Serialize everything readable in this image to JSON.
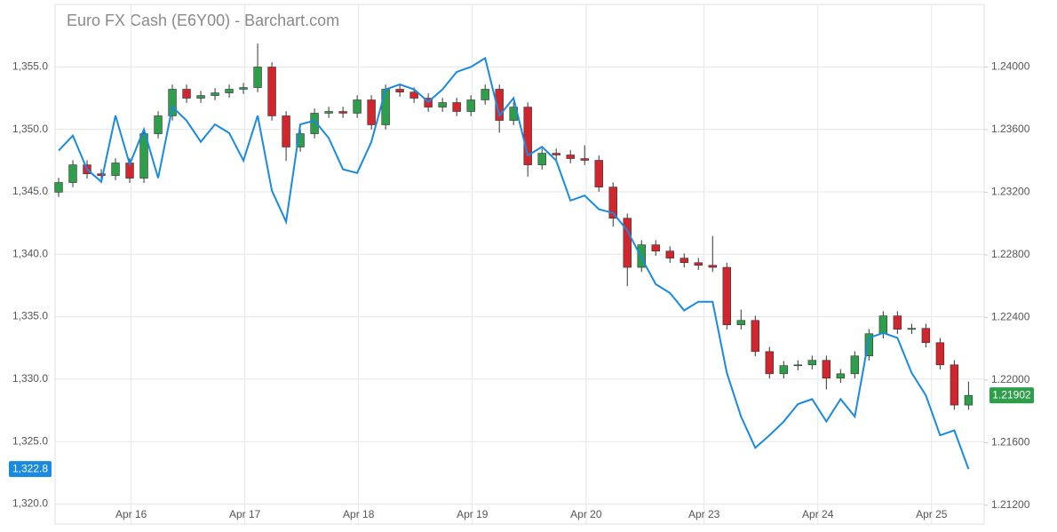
{
  "chart_data": {
    "type": "candlestick",
    "title": "Euro FX Cash (E6Y00) - Barchart.com",
    "x": [
      0,
      1,
      2,
      3,
      4,
      5,
      6,
      7,
      8,
      9,
      10,
      11,
      12,
      13,
      14,
      15,
      16,
      17,
      18,
      19,
      20,
      21,
      22,
      23,
      24,
      25,
      26,
      27,
      28,
      29,
      30,
      31,
      32,
      33,
      34,
      35,
      36,
      37,
      38,
      39,
      40,
      41,
      42,
      43,
      44,
      45,
      46,
      47,
      48,
      49,
      50,
      51,
      52,
      53,
      54,
      55,
      56,
      57,
      58,
      59,
      60,
      61,
      62,
      63,
      64
    ],
    "xlim": [
      -0.25,
      65.1
    ],
    "xticks": [
      {
        "value": 5.1,
        "label": "Apr 16"
      },
      {
        "value": 13.1,
        "label": "Apr 17"
      },
      {
        "value": 21.1,
        "label": "Apr 18"
      },
      {
        "value": 29.1,
        "label": "Apr 19"
      },
      {
        "value": 37.1,
        "label": "Apr 20"
      },
      {
        "value": 45.4,
        "label": "Apr 23"
      },
      {
        "value": 53.4,
        "label": "Apr 24"
      },
      {
        "value": 61.4,
        "label": "Apr 25"
      }
    ],
    "ylim": [
      1318.4,
      1360.0
    ],
    "yticks": [
      {
        "value": 1320,
        "label": "1,320.0"
      },
      {
        "value": 1325,
        "label": "1,325.0"
      },
      {
        "value": 1330,
        "label": "1,330.0"
      },
      {
        "value": 1335,
        "label": "1,335.0"
      },
      {
        "value": 1340,
        "label": "1,340.0"
      },
      {
        "value": 1345,
        "label": "1,345.0"
      },
      {
        "value": 1350,
        "label": "1,350.0"
      },
      {
        "value": 1355,
        "label": "1,355.0"
      }
    ],
    "y2lim": [
      1.2108,
      1.244
    ],
    "y2ticks": [
      {
        "value": 1.212,
        "label": "1.21200"
      },
      {
        "value": 1.216,
        "label": "1.21600"
      },
      {
        "value": 1.22,
        "label": "1.22000"
      },
      {
        "value": 1.224,
        "label": "1.22400"
      },
      {
        "value": 1.228,
        "label": "1.22800"
      },
      {
        "value": 1.232,
        "label": "1.23200"
      },
      {
        "value": 1.236,
        "label": "1.23600"
      },
      {
        "value": 1.24,
        "label": "1.24000"
      }
    ],
    "grid": true,
    "candles": {
      "axis": "y2",
      "up_color": "#2e9e4a",
      "down_color": "#d0262d",
      "open": [
        1.232,
        1.23262,
        1.23375,
        1.23318,
        1.23307,
        1.23387,
        1.2329,
        1.23574,
        1.23688,
        1.23858,
        1.23801,
        1.23818,
        1.23835,
        1.23858,
        1.23869,
        1.24,
        1.23688,
        1.23489,
        1.23574,
        1.23705,
        1.23716,
        1.23705,
        1.2379,
        1.23631,
        1.23858,
        1.2384,
        1.23801,
        1.23744,
        1.23773,
        1.23716,
        1.2379,
        1.23858,
        1.23659,
        1.23744,
        1.23375,
        1.23449,
        1.23438,
        1.23415,
        1.23404,
        1.23233,
        1.23034,
        1.2272,
        1.22864,
        1.22824,
        1.22779,
        1.2275,
        1.22733,
        1.2272,
        1.22353,
        1.22381,
        1.22182,
        1.2204,
        1.22092,
        1.22097,
        1.22126,
        1.22012,
        1.2204,
        1.22154,
        1.22296,
        1.2241,
        1.22324,
        1.2233,
        1.22239,
        1.22097,
        1.2184
      ],
      "high": [
        1.23292,
        1.23405,
        1.23405,
        1.23348,
        1.23417,
        1.23417,
        1.23604,
        1.23718,
        1.23888,
        1.23888,
        1.23848,
        1.23865,
        1.23888,
        1.23899,
        1.2415,
        1.2403,
        1.23718,
        1.23604,
        1.23735,
        1.23746,
        1.23746,
        1.2382,
        1.2382,
        1.23888,
        1.23888,
        1.2387,
        1.23831,
        1.23803,
        1.23803,
        1.2382,
        1.23888,
        1.23888,
        1.23774,
        1.23774,
        1.23479,
        1.23479,
        1.23468,
        1.235,
        1.23434,
        1.23263,
        1.23064,
        1.22894,
        1.22894,
        1.22854,
        1.22809,
        1.2278,
        1.2292,
        1.2275,
        1.2245,
        1.22411,
        1.22212,
        1.22122,
        1.22127,
        1.22156,
        1.22156,
        1.2207,
        1.22184,
        1.22326,
        1.2244,
        1.2244,
        1.2236,
        1.2236,
        1.22269,
        1.22127,
        1.2199
      ],
      "low": [
        1.2317,
        1.23232,
        1.23288,
        1.23277,
        1.23277,
        1.2326,
        1.2326,
        1.23544,
        1.23658,
        1.23771,
        1.23771,
        1.23788,
        1.23805,
        1.23828,
        1.23839,
        1.23658,
        1.234,
        1.23459,
        1.23544,
        1.23675,
        1.23675,
        1.23675,
        1.23601,
        1.23601,
        1.2381,
        1.23771,
        1.23714,
        1.23714,
        1.23686,
        1.23686,
        1.2376,
        1.2358,
        1.23629,
        1.233,
        1.23345,
        1.23408,
        1.23385,
        1.23374,
        1.23203,
        1.2298,
        1.226,
        1.2269,
        1.22794,
        1.22749,
        1.2272,
        1.22703,
        1.2269,
        1.22323,
        1.22323,
        1.22152,
        1.2201,
        1.2201,
        1.22062,
        1.22067,
        1.2194,
        1.21982,
        1.2201,
        1.22124,
        1.22266,
        1.22294,
        1.22294,
        1.22209,
        1.22067,
        1.2181,
        1.2181
      ],
      "close": [
        1.23262,
        1.23375,
        1.23318,
        1.23307,
        1.23387,
        1.2329,
        1.23574,
        1.23688,
        1.23858,
        1.23801,
        1.23818,
        1.23835,
        1.23858,
        1.23869,
        1.24,
        1.23688,
        1.23489,
        1.23574,
        1.23705,
        1.23716,
        1.23705,
        1.2379,
        1.23631,
        1.23858,
        1.2384,
        1.23801,
        1.23744,
        1.23773,
        1.23716,
        1.2379,
        1.23858,
        1.23659,
        1.23744,
        1.23375,
        1.23449,
        1.23438,
        1.23415,
        1.23404,
        1.23233,
        1.23034,
        1.2272,
        1.22864,
        1.22824,
        1.22779,
        1.2275,
        1.22733,
        1.2272,
        1.22353,
        1.22381,
        1.22182,
        1.2204,
        1.22092,
        1.22097,
        1.22126,
        1.22012,
        1.2204,
        1.22154,
        1.22296,
        1.2241,
        1.22324,
        1.2233,
        1.22239,
        1.22097,
        1.2184,
        1.21902
      ],
      "last_value_label": "1.21902"
    },
    "line": {
      "axis": "y",
      "color": "#1a8ae0",
      "values": [
        1348.3,
        1349.5,
        1346.8,
        1345.8,
        1351.1,
        1347.2,
        1350.0,
        1346.1,
        1351.8,
        1350.7,
        1349.0,
        1350.4,
        1349.7,
        1347.5,
        1351.1,
        1345.1,
        1342.6,
        1350.4,
        1350.7,
        1349.3,
        1346.8,
        1346.5,
        1349.0,
        1353.2,
        1353.6,
        1353.2,
        1352.2,
        1353.2,
        1354.6,
        1355.0,
        1355.7,
        1351.1,
        1352.5,
        1347.9,
        1348.6,
        1347.5,
        1344.3,
        1344.7,
        1343.6,
        1343.3,
        1341.9,
        1339.7,
        1337.6,
        1336.9,
        1335.5,
        1336.2,
        1336.2,
        1330.5,
        1327.0,
        1324.5,
        1325.5,
        1326.6,
        1328.0,
        1328.4,
        1326.6,
        1328.4,
        1327.0,
        1333.3,
        1333.7,
        1333.3,
        1330.5,
        1328.7,
        1325.5,
        1325.9,
        1322.8
      ],
      "last_value_label": "1,322.8"
    }
  }
}
